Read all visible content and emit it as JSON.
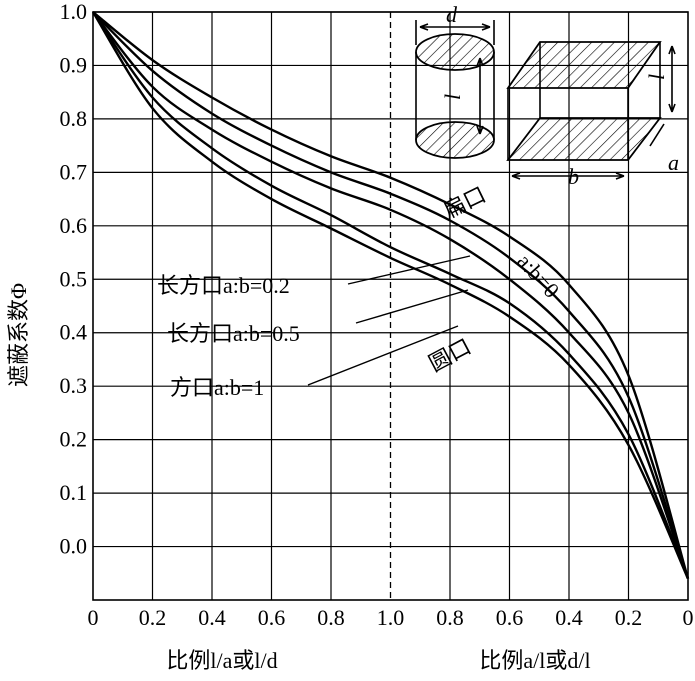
{
  "chart_data": {
    "type": "line",
    "title": "",
    "ylabel": "遮蔽系数Φ",
    "xlabel_left": "比例l/a或l/d",
    "xlabel_right": "比例a/l或d/l",
    "ylim": [
      -0.1,
      1.0
    ],
    "y_ticks": [
      "0.0",
      "0.1",
      "0.2",
      "0.3",
      "0.4",
      "0.5",
      "0.6",
      "0.7",
      "0.8",
      "0.9",
      "1.0"
    ],
    "x_ticks_left": [
      "0",
      "0.2",
      "0.4",
      "0.6",
      "0.8",
      "1.0"
    ],
    "x_ticks_right": [
      "0.8",
      "0.6",
      "0.4",
      "0.2",
      "0"
    ],
    "grid": true,
    "series": [
      {
        "name": "扁口 a:b=0",
        "label_a": "扁口",
        "label_b": "a:b=0",
        "points": [
          [
            0,
            1.0
          ],
          [
            0.2,
            0.91
          ],
          [
            0.4,
            0.84
          ],
          [
            0.6,
            0.78
          ],
          [
            0.8,
            0.73
          ],
          [
            1.0,
            0.69
          ],
          [
            1.2,
            0.64
          ],
          [
            1.4,
            0.58
          ],
          [
            1.6,
            0.49
          ],
          [
            1.8,
            0.32
          ],
          [
            2.0,
            -0.06
          ]
        ]
      },
      {
        "name": "长方口a:b=0.2",
        "points": [
          [
            0,
            1.0
          ],
          [
            0.2,
            0.89
          ],
          [
            0.4,
            0.81
          ],
          [
            0.6,
            0.75
          ],
          [
            0.8,
            0.7
          ],
          [
            1.0,
            0.66
          ],
          [
            1.2,
            0.61
          ],
          [
            1.4,
            0.54
          ],
          [
            1.6,
            0.44
          ],
          [
            1.8,
            0.28
          ],
          [
            2.0,
            -0.06
          ]
        ]
      },
      {
        "name": "长方口a:b=0.5",
        "points": [
          [
            0,
            1.0
          ],
          [
            0.2,
            0.86
          ],
          [
            0.4,
            0.78
          ],
          [
            0.6,
            0.72
          ],
          [
            0.8,
            0.67
          ],
          [
            1.0,
            0.63
          ],
          [
            1.2,
            0.575
          ],
          [
            1.4,
            0.5
          ],
          [
            1.6,
            0.4
          ],
          [
            1.8,
            0.25
          ],
          [
            2.0,
            -0.06
          ]
        ]
      },
      {
        "name": "圆口",
        "label_a": "圆口",
        "points": [
          [
            0,
            1.0
          ],
          [
            0.2,
            0.84
          ],
          [
            0.4,
            0.745
          ],
          [
            0.6,
            0.675
          ],
          [
            0.8,
            0.62
          ],
          [
            1.0,
            0.56
          ],
          [
            1.2,
            0.51
          ],
          [
            1.4,
            0.455
          ],
          [
            1.6,
            0.36
          ],
          [
            1.8,
            0.21
          ],
          [
            2.0,
            -0.06
          ]
        ]
      },
      {
        "name": "方口a:b=1",
        "points": [
          [
            0,
            1.0
          ],
          [
            0.2,
            0.82
          ],
          [
            0.4,
            0.72
          ],
          [
            0.6,
            0.65
          ],
          [
            0.8,
            0.595
          ],
          [
            1.0,
            0.54
          ],
          [
            1.2,
            0.49
          ],
          [
            1.4,
            0.43
          ],
          [
            1.6,
            0.34
          ],
          [
            1.8,
            0.19
          ],
          [
            2.0,
            -0.06
          ]
        ]
      }
    ],
    "inset_labels": {
      "diameter": "d",
      "length": "l",
      "side_a": "a",
      "side_b": "b"
    }
  }
}
